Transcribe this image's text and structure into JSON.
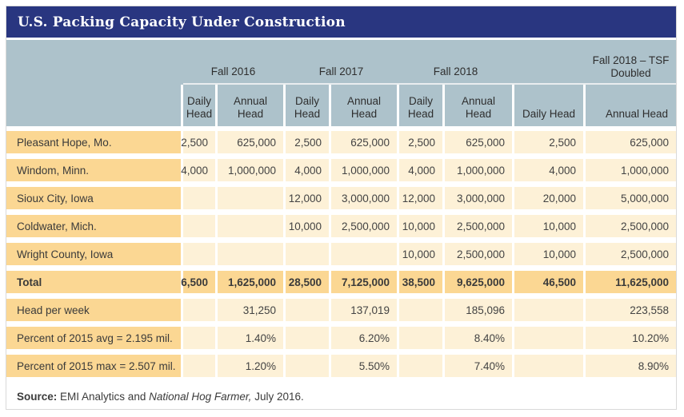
{
  "title_bar": "U.S. Packing Capacity Under Construction",
  "header": {
    "sub": {
      "daily1": "Daily",
      "daily2": "Head",
      "annual1": "Annual",
      "annual2": "Head",
      "daily_single": "Daily Head",
      "annual_single": "Annual Head"
    }
  },
  "chart_data": {
    "type": "table",
    "title": "U.S. Packing Capacity Under Construction",
    "column_groups": [
      "Fall 2016",
      "Fall 2017",
      "Fall 2018",
      "Fall 2018 – TSF Doubled"
    ],
    "columns": [
      "Fall 2016 Daily Head",
      "Fall 2016 Annual Head",
      "Fall 2017 Daily Head",
      "Fall 2017 Annual Head",
      "Fall 2018 Daily Head",
      "Fall 2018 Annual Head",
      "Fall 2018 – TSF Doubled Daily Head",
      "Fall 2018 – TSF Doubled Annual Head"
    ],
    "rows": [
      {
        "label": "Pleasant Hope, Mo.",
        "cells": [
          "2,500",
          "625,000",
          "2,500",
          "625,000",
          "2,500",
          "625,000",
          "2,500",
          "625,000"
        ]
      },
      {
        "label": "Windom, Minn.",
        "cells": [
          "4,000",
          "1,000,000",
          "4,000",
          "1,000,000",
          "4,000",
          "1,000,000",
          "4,000",
          "1,000,000"
        ]
      },
      {
        "label": "Sioux City, Iowa",
        "cells": [
          "",
          "",
          "12,000",
          "3,000,000",
          "12,000",
          "3,000,000",
          "20,000",
          "5,000,000"
        ]
      },
      {
        "label": "Coldwater, Mich.",
        "cells": [
          "",
          "",
          "10,000",
          "2,500,000",
          "10,000",
          "2,500,000",
          "10,000",
          "2,500,000"
        ]
      },
      {
        "label": "Wright County, Iowa",
        "cells": [
          "",
          "",
          "",
          "",
          "10,000",
          "2,500,000",
          "10,000",
          "2,500,000"
        ]
      },
      {
        "label": "Total",
        "cells": [
          "6,500",
          "1,625,000",
          "28,500",
          "7,125,000",
          "38,500",
          "9,625,000",
          "46,500",
          "11,625,000"
        ]
      },
      {
        "label": "Head per week",
        "cells": [
          "",
          "31,250",
          "",
          "137,019",
          "",
          "185,096",
          "",
          "223,558"
        ]
      },
      {
        "label": "Percent of 2015 avg = 2.195 mil.",
        "cells": [
          "",
          "1.40%",
          "",
          "6.20%",
          "",
          "8.40%",
          "",
          "10.20%"
        ]
      },
      {
        "label": "Percent of 2015 max = 2.507 mil.",
        "cells": [
          "",
          "1.20%",
          "",
          "5.50%",
          "",
          "7.40%",
          "",
          "8.90%"
        ]
      }
    ],
    "source_note": "Source: EMI Analytics and National Hog Farmer, July 2016."
  },
  "source": {
    "label": "Source:",
    "text1": "EMI Analytics and",
    "italic": "National Hog Farmer,",
    "text2": "July 2016."
  },
  "colors": {
    "title_bar_navy": "#293680",
    "header_blue_gray": "#adc2cb",
    "row_label_tan": "#fbd793",
    "data_cell_cream": "#fdf1d7"
  }
}
